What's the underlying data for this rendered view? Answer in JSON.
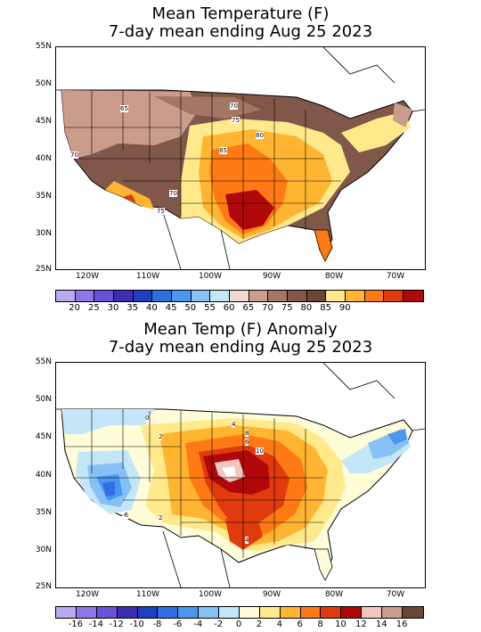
{
  "panel1": {
    "title_line1": "Mean Temperature (F)",
    "title_line2": "7-day mean ending Aug 25 2023",
    "lat_labels": [
      "55N",
      "50N",
      "45N",
      "40N",
      "35N",
      "30N",
      "25N"
    ],
    "lon_labels": [
      "120W",
      "110W",
      "100W",
      "90W",
      "80W",
      "70W"
    ],
    "contour_labels": [
      "65",
      "70",
      "70",
      "70",
      "75",
      "75",
      "80",
      "85",
      "70"
    ],
    "colorbar": {
      "labels": [
        "20",
        "25",
        "30",
        "35",
        "40",
        "45",
        "50",
        "55",
        "60",
        "65",
        "70",
        "75",
        "80",
        "85",
        "90"
      ],
      "colors": [
        "#b9a9ef",
        "#8e77e8",
        "#6a52d6",
        "#3b2fb0",
        "#1e3fbf",
        "#2f6fe0",
        "#4d96ef",
        "#86c1f5",
        "#c3e7f8",
        "#efd9cf",
        "#c99c8c",
        "#a47765",
        "#81574a",
        "#6b4535",
        "#ffe98a",
        "#ffb532",
        "#ff7a14",
        "#e03b0c",
        "#b0080a"
      ]
    }
  },
  "panel2": {
    "title_line1": "Mean Temp (F) Anomaly",
    "title_line2": "7-day mean ending Aug 25 2023",
    "lat_labels": [
      "55N",
      "50N",
      "45N",
      "40N",
      "35N",
      "30N",
      "25N"
    ],
    "lon_labels": [
      "120W",
      "110W",
      "100W",
      "90W",
      "80W",
      "70W"
    ],
    "contour_labels": [
      "0",
      "2",
      "4",
      "6",
      "8",
      "10",
      "2",
      "-6",
      "2",
      "4",
      "6",
      "0"
    ],
    "colorbar": {
      "labels": [
        "-16",
        "-14",
        "-12",
        "-10",
        "-8",
        "-6",
        "-4",
        "-2",
        "0",
        "2",
        "4",
        "6",
        "8",
        "10",
        "12",
        "14",
        "16"
      ],
      "colors": [
        "#b9a9ef",
        "#8e77e8",
        "#6a52d6",
        "#3b2fb0",
        "#1e3fbf",
        "#2f6fe0",
        "#4d96ef",
        "#86c1f5",
        "#c3e7f8",
        "#fffcd8",
        "#ffe98a",
        "#ffb532",
        "#ff7a14",
        "#e03b0c",
        "#b0080a",
        "#f0c8c0",
        "#c99c8c",
        "#6b4535"
      ]
    }
  }
}
